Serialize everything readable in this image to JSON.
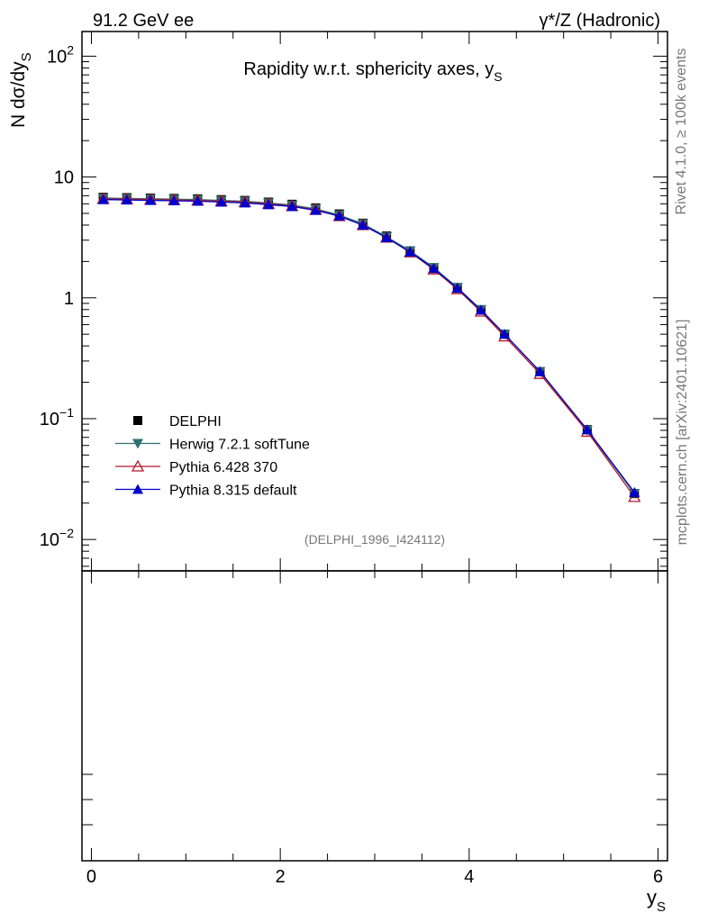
{
  "header": {
    "energy_label": "91.2 GeV ee",
    "process_label": "γ*/Z (Hadronic)"
  },
  "side": {
    "rivet_label": "Rivet 4.1.0, ≥ 100k events",
    "mcplots_label": "mcplots.cern.ch [arXiv:2401.10621]"
  },
  "chart_data": {
    "type": "line",
    "title": "Rapidity w.r.t. sphericity axes, y",
    "title_subscript": "S",
    "ylabel_main": "N  dσ/dy",
    "ylabel_subscript": "S",
    "xlabel_main": "y",
    "xlabel_subscript": "S",
    "analysis_id": "(DELPHI_1996_I424112)",
    "y_scale": "log",
    "xlim": [
      -0.1,
      6.1
    ],
    "ylim": [
      0.0055,
      160
    ],
    "ratio_panel": true,
    "legend_placement": "lower-left",
    "x_ticks": [
      {
        "value": 0,
        "label": "0"
      },
      {
        "value": 2,
        "label": "2"
      },
      {
        "value": 4,
        "label": "4"
      },
      {
        "value": 6,
        "label": "6"
      }
    ],
    "y_ticks": [
      {
        "value": 0.01,
        "base": "10",
        "exp": "−2"
      },
      {
        "value": 0.1,
        "base": "10",
        "exp": "−1"
      },
      {
        "value": 1,
        "base": "1",
        "exp": ""
      },
      {
        "value": 10,
        "base": "10",
        "exp": ""
      },
      {
        "value": 100,
        "base": "10",
        "exp": "2"
      }
    ],
    "x": [
      0.125,
      0.375,
      0.625,
      0.875,
      1.125,
      1.375,
      1.625,
      1.875,
      2.125,
      2.375,
      2.625,
      2.875,
      3.125,
      3.375,
      3.625,
      3.875,
      4.125,
      4.375,
      4.75,
      5.25,
      5.75
    ],
    "series": [
      {
        "name": "DELPHI",
        "color": "#000000",
        "marker": "square",
        "values": [
          6.8,
          6.75,
          6.7,
          6.65,
          6.6,
          6.5,
          6.4,
          6.2,
          5.95,
          5.55,
          4.95,
          4.15,
          3.25,
          2.45,
          1.75,
          1.2,
          0.79,
          0.5,
          0.245,
          0.081,
          0.024
        ]
      },
      {
        "name": "Herwig 7.2.1 softTune",
        "color": "#2f6f6f",
        "marker": "triangle-down",
        "values": [
          6.7,
          6.65,
          6.6,
          6.55,
          6.5,
          6.4,
          6.3,
          6.1,
          5.85,
          5.45,
          4.85,
          4.1,
          3.2,
          2.45,
          1.78,
          1.22,
          0.8,
          0.5,
          0.245,
          0.08,
          0.024
        ]
      },
      {
        "name": "Pythia 6.428 370",
        "color": "#b2182b",
        "marker": "triangle-open",
        "values": [
          6.6,
          6.55,
          6.5,
          6.45,
          6.4,
          6.3,
          6.2,
          6.0,
          5.75,
          5.35,
          4.75,
          4.0,
          3.15,
          2.38,
          1.72,
          1.18,
          0.77,
          0.48,
          0.235,
          0.078,
          0.0225
        ]
      },
      {
        "name": "Pythia 8.315 default",
        "color": "#0000cc",
        "marker": "triangle-up",
        "values": [
          6.5,
          6.45,
          6.4,
          6.35,
          6.3,
          6.2,
          6.1,
          5.9,
          5.7,
          5.3,
          4.75,
          4.0,
          3.15,
          2.4,
          1.75,
          1.2,
          0.79,
          0.5,
          0.245,
          0.081,
          0.0245
        ]
      }
    ]
  }
}
